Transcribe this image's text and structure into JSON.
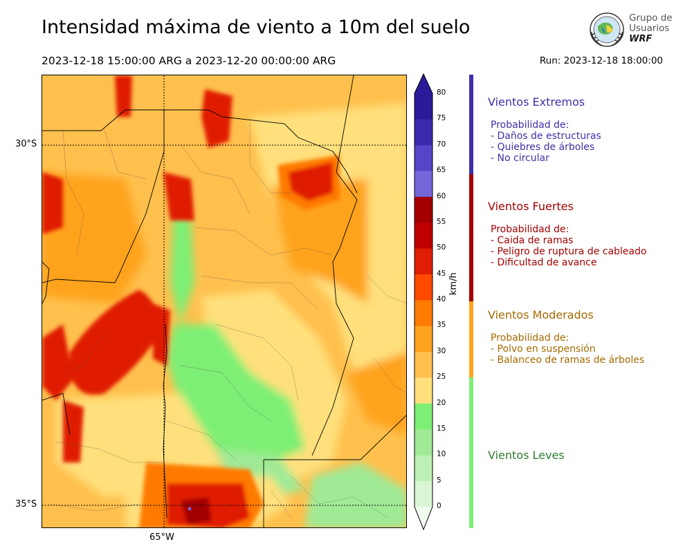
{
  "title": "Intensidad máxima de viento a 10m del suelo",
  "period": "2023-12-18 15:00:00 ARG  a  2023-12-20 00:00:00 ARG",
  "run": "Run: 2023-12-18 18:00:00",
  "logo": {
    "lines": [
      "Grupo de",
      "Usuarios",
      "WRF"
    ],
    "icon": "globe-seal-icon"
  },
  "map": {
    "lat_labels": [
      "30°S",
      "35°S"
    ],
    "lon_labels": [
      "65°W"
    ],
    "unit": "km/h"
  },
  "colorbar": {
    "unit": "km/h",
    "ticks": [
      0,
      5,
      10,
      15,
      20,
      25,
      30,
      35,
      40,
      45,
      50,
      55,
      60,
      65,
      70,
      75,
      80
    ],
    "colors": [
      "#f1fbef",
      "#d9f6d4",
      "#bdf0b4",
      "#a0ea96",
      "#7eef75",
      "#ffe07c",
      "#ffc04d",
      "#ffa31e",
      "#ff7a00",
      "#ff4a00",
      "#e01e05",
      "#c00000",
      "#a30000",
      "#7366d8",
      "#5545c8",
      "#3a2aae",
      "#2a1b9a"
    ]
  },
  "categories": [
    {
      "title": "Vientos Extremos",
      "color": "#3f2fa8",
      "sub_header": "Probabilidad de:",
      "items": [
        "- Daños de estructuras",
        "- Quiebres de árboles",
        "- No circular"
      ]
    },
    {
      "title": "Vientos Fuertes",
      "color": "#a30000",
      "sub_header": "Probabilidad de:",
      "items": [
        "- Caida de ramas",
        "- Peligro de ruptura de cableado",
        "- Dificultad de avance"
      ]
    },
    {
      "title": "Vientos Moderados",
      "color": "#a36b00",
      "sub_header": "Probabilidad de:",
      "items": [
        "- Polvo en suspensión",
        "- Balanceo de ramas de árboles"
      ]
    },
    {
      "title": "Vientos Leves",
      "color": "#2f7d2f",
      "sub_header": "",
      "items": []
    }
  ]
}
